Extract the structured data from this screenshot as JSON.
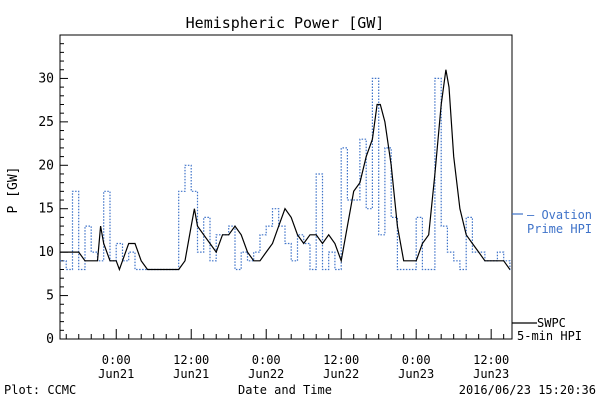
{
  "chart_data": {
    "type": "line",
    "title": "Hemispheric Power [GW]",
    "ylabel": "P [GW]",
    "xlabel": "Date and Time",
    "ylim": [
      0,
      35
    ],
    "yticks": [
      0,
      5,
      10,
      15,
      20,
      25,
      30
    ],
    "xlim": [
      "2016-06-20T15:00",
      "2016-06-23T15:20"
    ],
    "xticks": [
      {
        "t": "2016-06-21T00:00",
        "time": "0:00",
        "date": "Jun21"
      },
      {
        "t": "2016-06-21T12:00",
        "time": "12:00",
        "date": "Jun21"
      },
      {
        "t": "2016-06-22T00:00",
        "time": "0:00",
        "date": "Jun22"
      },
      {
        "t": "2016-06-22T12:00",
        "time": "12:00",
        "date": "Jun22"
      },
      {
        "t": "2016-06-23T00:00",
        "time": "0:00",
        "date": "Jun23"
      },
      {
        "t": "2016-06-23T12:00",
        "time": "12:00",
        "date": "Jun23"
      }
    ],
    "grid": false,
    "legend_position": "right",
    "series": [
      {
        "name": "SWPC 5-min HPI",
        "legend_lines": [
          "SWPC",
          "5-min HPI"
        ],
        "color": "#000000",
        "style": "solid",
        "x": [
          "2016-06-20T15:00",
          "2016-06-20T18:00",
          "2016-06-20T19:00",
          "2016-06-20T20:00",
          "2016-06-20T21:00",
          "2016-06-20T21:30",
          "2016-06-20T22:00",
          "2016-06-20T23:00",
          "2016-06-21T00:00",
          "2016-06-21T00:30",
          "2016-06-21T01:00",
          "2016-06-21T02:00",
          "2016-06-21T03:00",
          "2016-06-21T04:00",
          "2016-06-21T05:00",
          "2016-06-21T06:00",
          "2016-06-21T08:00",
          "2016-06-21T10:00",
          "2016-06-21T11:00",
          "2016-06-21T12:00",
          "2016-06-21T12:30",
          "2016-06-21T13:00",
          "2016-06-21T14:00",
          "2016-06-21T15:00",
          "2016-06-21T16:00",
          "2016-06-21T17:00",
          "2016-06-21T18:00",
          "2016-06-21T19:00",
          "2016-06-21T20:00",
          "2016-06-21T21:00",
          "2016-06-21T22:00",
          "2016-06-21T23:00",
          "2016-06-22T00:00",
          "2016-06-22T01:00",
          "2016-06-22T02:00",
          "2016-06-22T03:00",
          "2016-06-22T04:00",
          "2016-06-22T05:00",
          "2016-06-22T06:00",
          "2016-06-22T07:00",
          "2016-06-22T08:00",
          "2016-06-22T09:00",
          "2016-06-22T10:00",
          "2016-06-22T11:00",
          "2016-06-22T12:00",
          "2016-06-22T13:00",
          "2016-06-22T14:00",
          "2016-06-22T15:00",
          "2016-06-22T16:00",
          "2016-06-22T17:00",
          "2016-06-22T17:45",
          "2016-06-22T18:15",
          "2016-06-22T19:00",
          "2016-06-22T20:00",
          "2016-06-22T21:00",
          "2016-06-22T22:00",
          "2016-06-22T23:00",
          "2016-06-23T00:00",
          "2016-06-23T01:00",
          "2016-06-23T02:00",
          "2016-06-23T03:00",
          "2016-06-23T04:00",
          "2016-06-23T04:45",
          "2016-06-23T05:15",
          "2016-06-23T06:00",
          "2016-06-23T07:00",
          "2016-06-23T08:00",
          "2016-06-23T09:00",
          "2016-06-23T10:00",
          "2016-06-23T11:00",
          "2016-06-23T12:00",
          "2016-06-23T13:00",
          "2016-06-23T14:00",
          "2016-06-23T15:00"
        ],
        "y": [
          10,
          10,
          9,
          9,
          9,
          13,
          11,
          9,
          9,
          8,
          9,
          11,
          11,
          9,
          8,
          8,
          8,
          8,
          9,
          13,
          15,
          13,
          12,
          11,
          10,
          12,
          12,
          13,
          12,
          10,
          9,
          9,
          10,
          11,
          13,
          15,
          14,
          12,
          11,
          12,
          12,
          11,
          12,
          11,
          9,
          13,
          17,
          18,
          21,
          23,
          27,
          27,
          25,
          20,
          13,
          9,
          9,
          9,
          11,
          12,
          19,
          27,
          31,
          29,
          21,
          15,
          12,
          11,
          10,
          9,
          9,
          9,
          9,
          8
        ]
      },
      {
        "name": "Ovation Prime HPI",
        "legend_lines": [
          "– Ovation",
          "Prime HPI"
        ],
        "color": "#3f73c9",
        "style": "dotted",
        "x": [
          "2016-06-20T15:00",
          "2016-06-20T16:00",
          "2016-06-20T17:00",
          "2016-06-20T18:00",
          "2016-06-20T19:00",
          "2016-06-20T20:00",
          "2016-06-20T21:00",
          "2016-06-20T22:00",
          "2016-06-20T23:00",
          "2016-06-21T00:00",
          "2016-06-21T01:00",
          "2016-06-21T02:00",
          "2016-06-21T03:00",
          "2016-06-21T04:00",
          "2016-06-21T05:00",
          "2016-06-21T06:00",
          "2016-06-21T07:00",
          "2016-06-21T08:00",
          "2016-06-21T09:00",
          "2016-06-21T10:00",
          "2016-06-21T11:00",
          "2016-06-21T12:00",
          "2016-06-21T13:00",
          "2016-06-21T14:00",
          "2016-06-21T15:00",
          "2016-06-21T16:00",
          "2016-06-21T17:00",
          "2016-06-21T18:00",
          "2016-06-21T19:00",
          "2016-06-21T20:00",
          "2016-06-21T21:00",
          "2016-06-21T22:00",
          "2016-06-21T23:00",
          "2016-06-22T00:00",
          "2016-06-22T01:00",
          "2016-06-22T02:00",
          "2016-06-22T03:00",
          "2016-06-22T04:00",
          "2016-06-22T05:00",
          "2016-06-22T06:00",
          "2016-06-22T07:00",
          "2016-06-22T08:00",
          "2016-06-22T09:00",
          "2016-06-22T10:00",
          "2016-06-22T11:00",
          "2016-06-22T12:00",
          "2016-06-22T13:00",
          "2016-06-22T14:00",
          "2016-06-22T15:00",
          "2016-06-22T16:00",
          "2016-06-22T17:00",
          "2016-06-22T18:00",
          "2016-06-22T19:00",
          "2016-06-22T20:00",
          "2016-06-22T21:00",
          "2016-06-22T22:00",
          "2016-06-22T23:00",
          "2016-06-23T00:00",
          "2016-06-23T01:00",
          "2016-06-23T02:00",
          "2016-06-23T03:00",
          "2016-06-23T04:00",
          "2016-06-23T05:00",
          "2016-06-23T06:00",
          "2016-06-23T07:00",
          "2016-06-23T08:00",
          "2016-06-23T09:00",
          "2016-06-23T10:00",
          "2016-06-23T11:00",
          "2016-06-23T12:00",
          "2016-06-23T13:00",
          "2016-06-23T14:00",
          "2016-06-23T15:00"
        ],
        "y": [
          9,
          8,
          17,
          8,
          13,
          10,
          9,
          17,
          9,
          11,
          9,
          10,
          8,
          8,
          8,
          8,
          8,
          8,
          8,
          17,
          20,
          17,
          10,
          14,
          9,
          12,
          12,
          13,
          8,
          10,
          9,
          10,
          12,
          13,
          15,
          13,
          11,
          9,
          12,
          11,
          8,
          19,
          8,
          10,
          8,
          22,
          16,
          16,
          23,
          15,
          30,
          12,
          22,
          14,
          8,
          8,
          8,
          14,
          8,
          8,
          30,
          13,
          10,
          9,
          8,
          14,
          10,
          10,
          9,
          9,
          10,
          9,
          8
        ]
      }
    ]
  },
  "footer": {
    "left": "Plot: CCMC",
    "center": "Date and Time",
    "right": "2016/06/23 15:20:36"
  }
}
